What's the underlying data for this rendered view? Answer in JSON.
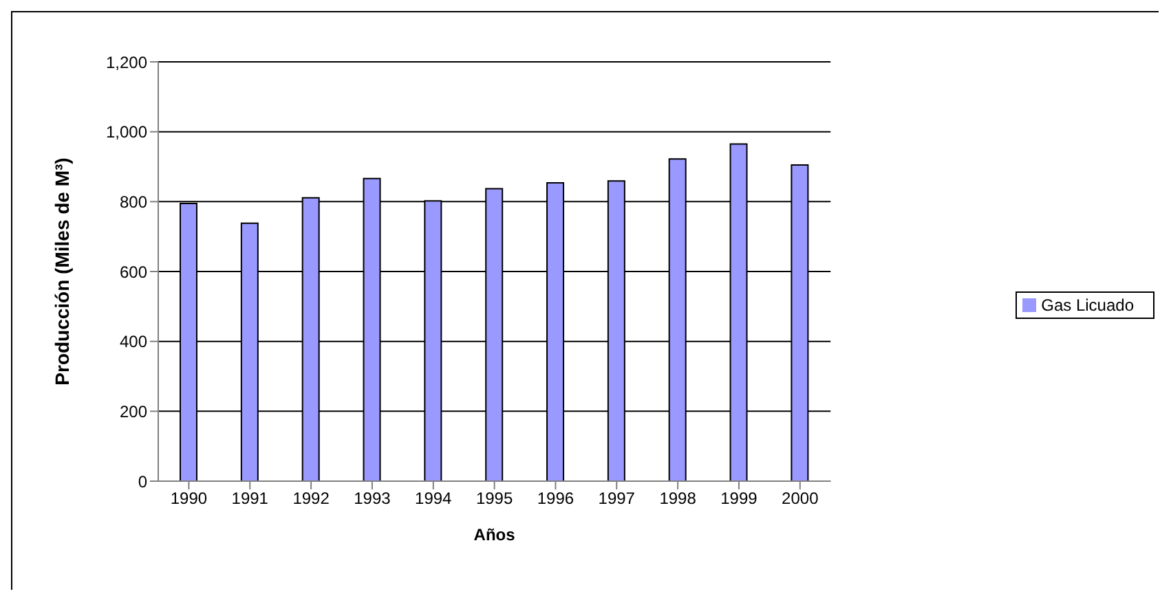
{
  "chart_data": {
    "type": "bar",
    "xlabel": "Años",
    "ylabel": "Producción (Miles de M³)",
    "categories": [
      "1990",
      "1991",
      "1992",
      "1993",
      "1994",
      "1995",
      "1996",
      "1997",
      "1998",
      "1999",
      "2000"
    ],
    "series": [
      {
        "name": "Gas Licuado",
        "color": "#9999ff",
        "values": [
          795,
          738,
          811,
          866,
          802,
          837,
          854,
          859,
          922,
          965,
          905
        ]
      }
    ],
    "ylim": [
      0,
      1200
    ],
    "yticks": [
      {
        "value": 0,
        "label": "0"
      },
      {
        "value": 200,
        "label": "200"
      },
      {
        "value": 400,
        "label": "400"
      },
      {
        "value": 600,
        "label": "600"
      },
      {
        "value": 800,
        "label": "800"
      },
      {
        "value": 1000,
        "label": "1,000"
      },
      {
        "value": 1200,
        "label": "1,200"
      }
    ],
    "grid": "y",
    "legend": "right"
  }
}
